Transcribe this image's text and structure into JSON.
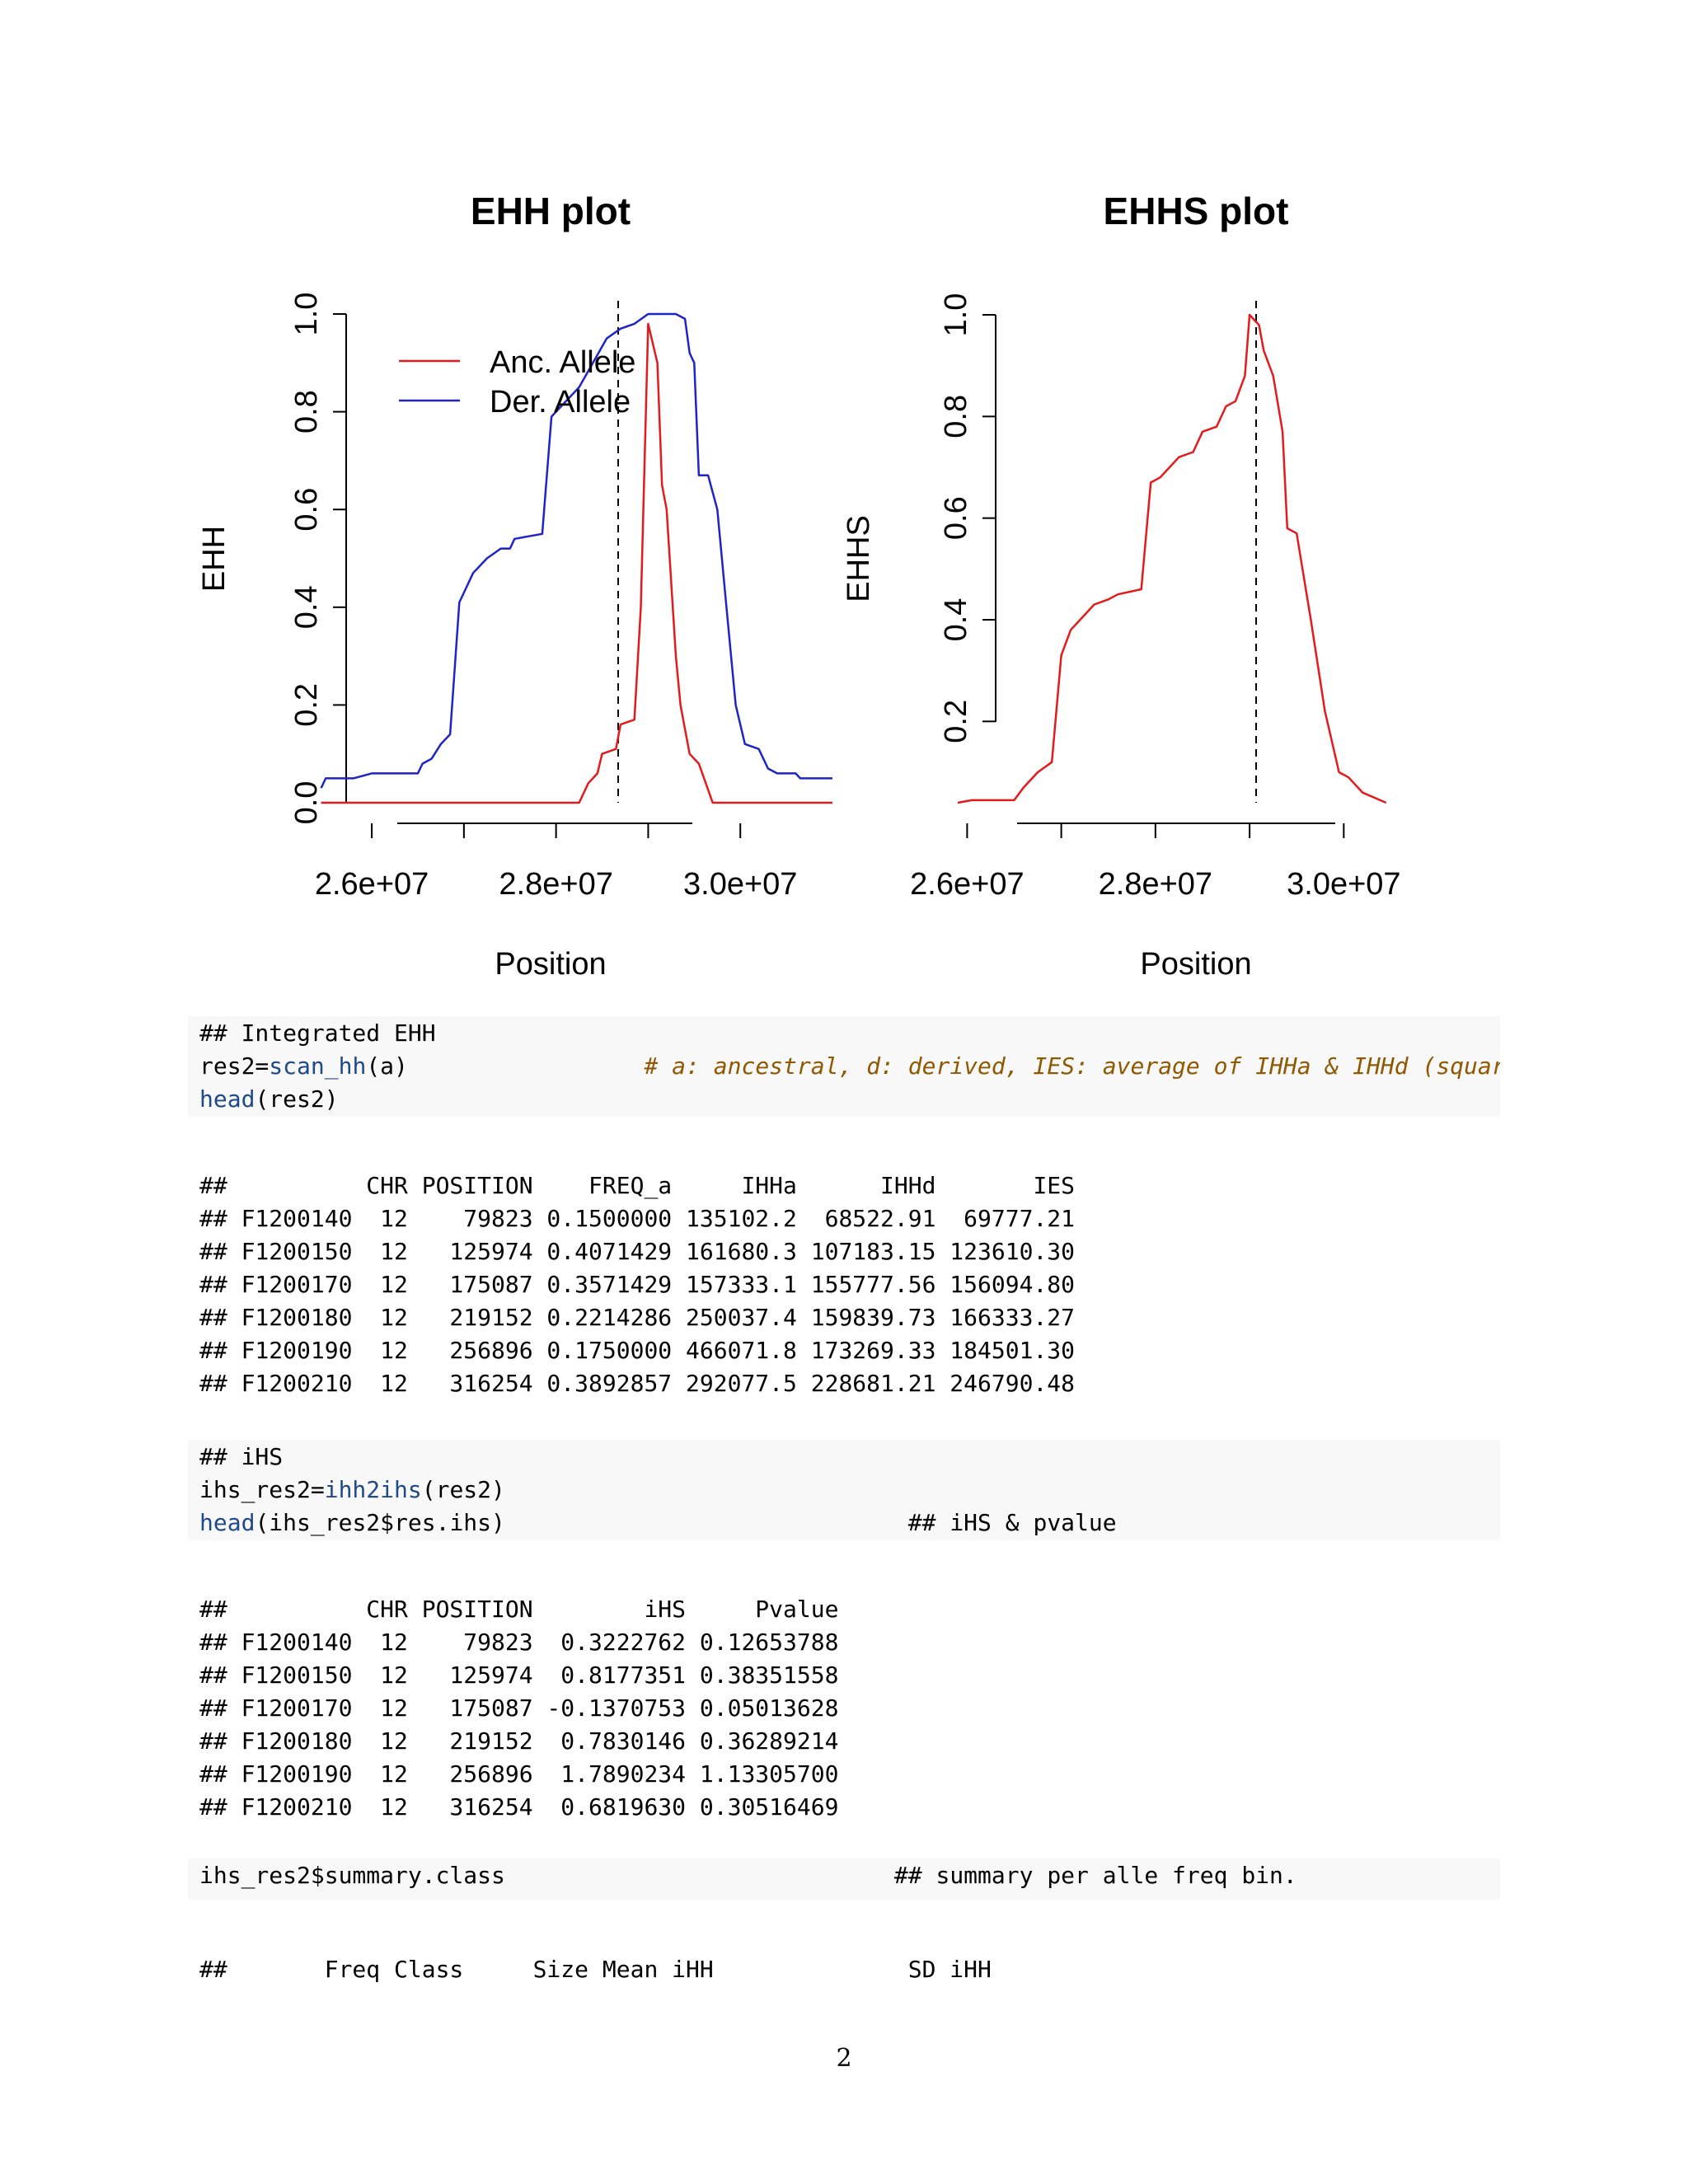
{
  "ehh_plot": {
    "chart_data": {
      "type": "line",
      "title": "EHH plot",
      "xlabel": "Position",
      "ylabel": "EHH",
      "xlim": [
        25400000,
        31000000
      ],
      "ylim": [
        0,
        1
      ],
      "x_ticks": [
        26000000,
        27000000,
        28000000,
        29000000,
        30000000
      ],
      "x_tick_labels": [
        "2.6e+07",
        "",
        "2.8e+07",
        "",
        "3.0e+07"
      ],
      "y_ticks": [
        0,
        0.2,
        0.4,
        0.6,
        0.8,
        1.0
      ],
      "y_tick_labels": [
        "0.0",
        "0.2",
        "0.4",
        "0.6",
        "0.8",
        "1.0"
      ],
      "vline": 29000000,
      "legend_position": "top-left",
      "series": [
        {
          "name": "Anc. Allele",
          "color": "#e41a1c",
          "points": [
            [
              25450000,
              0
            ],
            [
              28250000,
              0
            ],
            [
              28350000,
              0.04
            ],
            [
              28450000,
              0.06
            ],
            [
              28500000,
              0.1
            ],
            [
              28650000,
              0.11
            ],
            [
              28700000,
              0.16
            ],
            [
              28850000,
              0.17
            ],
            [
              28920000,
              0.4
            ],
            [
              29000000,
              0.98
            ],
            [
              29100000,
              0.9
            ],
            [
              29150000,
              0.65
            ],
            [
              29200000,
              0.6
            ],
            [
              29300000,
              0.3
            ],
            [
              29350000,
              0.2
            ],
            [
              29450000,
              0.1
            ],
            [
              29550000,
              0.08
            ],
            [
              29700000,
              0
            ],
            [
              31000000,
              0
            ]
          ]
        },
        {
          "name": "Der. Allele",
          "color": "#1f24c8",
          "points": [
            [
              25450000,
              0.03
            ],
            [
              25500000,
              0.05
            ],
            [
              25800000,
              0.05
            ],
            [
              26000000,
              0.06
            ],
            [
              26500000,
              0.06
            ],
            [
              26550000,
              0.08
            ],
            [
              26650000,
              0.09
            ],
            [
              26750000,
              0.12
            ],
            [
              26850000,
              0.14
            ],
            [
              26950000,
              0.41
            ],
            [
              27000000,
              0.43
            ],
            [
              27100000,
              0.47
            ],
            [
              27250000,
              0.5
            ],
            [
              27400000,
              0.52
            ],
            [
              27500000,
              0.52
            ],
            [
              27550000,
              0.54
            ],
            [
              27850000,
              0.55
            ],
            [
              27950000,
              0.79
            ],
            [
              28000000,
              0.8
            ],
            [
              28150000,
              0.83
            ],
            [
              28250000,
              0.85
            ],
            [
              28400000,
              0.9
            ],
            [
              28550000,
              0.95
            ],
            [
              28700000,
              0.97
            ],
            [
              28850000,
              0.98
            ],
            [
              29000000,
              1.0
            ],
            [
              29300000,
              1.0
            ],
            [
              29400000,
              0.99
            ],
            [
              29450000,
              0.92
            ],
            [
              29500000,
              0.9
            ],
            [
              29550000,
              0.67
            ],
            [
              29650000,
              0.67
            ],
            [
              29750000,
              0.6
            ],
            [
              29850000,
              0.4
            ],
            [
              29950000,
              0.2
            ],
            [
              30050000,
              0.12
            ],
            [
              30200000,
              0.11
            ],
            [
              30300000,
              0.07
            ],
            [
              30400000,
              0.06
            ],
            [
              30600000,
              0.06
            ],
            [
              30650000,
              0.05
            ],
            [
              31000000,
              0.05
            ]
          ]
        }
      ]
    }
  },
  "ehhs_plot": {
    "chart_data": {
      "type": "line",
      "title": "EHHS plot",
      "xlabel": "Position",
      "ylabel": "EHHS",
      "xlim": [
        25200000,
        31100000
      ],
      "ylim": [
        0.04,
        1.0
      ],
      "x_ticks": [
        26000000,
        27000000,
        28000000,
        29000000,
        30000000
      ],
      "x_tick_labels": [
        "2.6e+07",
        "",
        "2.8e+07",
        "",
        "3.0e+07"
      ],
      "y_ticks": [
        0.2,
        0.4,
        0.6,
        0.8,
        1.0
      ],
      "y_tick_labels": [
        "0.2",
        "0.4",
        "0.6",
        "0.8",
        "1.0"
      ],
      "vline": 29000000,
      "series": [
        {
          "name": "",
          "color": "#e41a1c",
          "points": [
            [
              25900000,
              0.04
            ],
            [
              26050000,
              0.045
            ],
            [
              26500000,
              0.045
            ],
            [
              26600000,
              0.07
            ],
            [
              26750000,
              0.1
            ],
            [
              26900000,
              0.12
            ],
            [
              27000000,
              0.33
            ],
            [
              27100000,
              0.38
            ],
            [
              27200000,
              0.4
            ],
            [
              27350000,
              0.43
            ],
            [
              27500000,
              0.44
            ],
            [
              27600000,
              0.45
            ],
            [
              27850000,
              0.46
            ],
            [
              27950000,
              0.67
            ],
            [
              28050000,
              0.68
            ],
            [
              28150000,
              0.7
            ],
            [
              28250000,
              0.72
            ],
            [
              28400000,
              0.73
            ],
            [
              28500000,
              0.77
            ],
            [
              28650000,
              0.78
            ],
            [
              28750000,
              0.82
            ],
            [
              28850000,
              0.83
            ],
            [
              28950000,
              0.88
            ],
            [
              29000000,
              1.0
            ],
            [
              29100000,
              0.98
            ],
            [
              29150000,
              0.93
            ],
            [
              29250000,
              0.88
            ],
            [
              29350000,
              0.77
            ],
            [
              29400000,
              0.58
            ],
            [
              29500000,
              0.57
            ],
            [
              29650000,
              0.4
            ],
            [
              29800000,
              0.22
            ],
            [
              29950000,
              0.1
            ],
            [
              30050000,
              0.09
            ],
            [
              30200000,
              0.06
            ],
            [
              30450000,
              0.04
            ]
          ]
        }
      ]
    }
  },
  "code1": {
    "line1": "## Integrated EHH",
    "line2_a": "res2=",
    "line2_fn": "scan_hh",
    "line2_b": "(a)",
    "line2_comment": "# a: ancestral, d: derived, IES: average of IHHa & IHHd (squared allel",
    "line3_fn": "head",
    "line3_b": "(res2)"
  },
  "output1": {
    "rows": [
      "##          CHR POSITION    FREQ_a     IHHa      IHHd       IES",
      "## F1200140  12    79823 0.1500000 135102.2  68522.91  69777.21",
      "## F1200150  12   125974 0.4071429 161680.3 107183.15 123610.30",
      "## F1200170  12   175087 0.3571429 157333.1 155777.56 156094.80",
      "## F1200180  12   219152 0.2214286 250037.4 159839.73 166333.27",
      "## F1200190  12   256896 0.1750000 466071.8 173269.33 184501.30",
      "## F1200210  12   316254 0.3892857 292077.5 228681.21 246790.48"
    ]
  },
  "code2": {
    "line1": "## iHS",
    "line2_a": "ihs_res2=",
    "line2_fn": "ihh2ihs",
    "line2_b": "(res2)",
    "line3_fn": "head",
    "line3_b": "(ihs_res2$res.ihs)",
    "line3_comment": "## iHS & pvalue"
  },
  "output2": {
    "rows": [
      "##          CHR POSITION        iHS     Pvalue",
      "## F1200140  12    79823  0.3222762 0.12653788",
      "## F1200150  12   125974  0.8177351 0.38351558",
      "## F1200170  12   175087 -0.1370753 0.05013628",
      "## F1200180  12   219152  0.7830146 0.36289214",
      "## F1200190  12   256896  1.7890234 1.13305700",
      "## F1200210  12   316254  0.6819630 0.30516469"
    ]
  },
  "code3": {
    "line1": "ihs_res2$summary.class",
    "line1_comment": "## summary per alle freq bin."
  },
  "output3": {
    "rows": [
      "##       Freq Class     Size Mean iHH              SD iHH"
    ]
  },
  "page_number": "2"
}
